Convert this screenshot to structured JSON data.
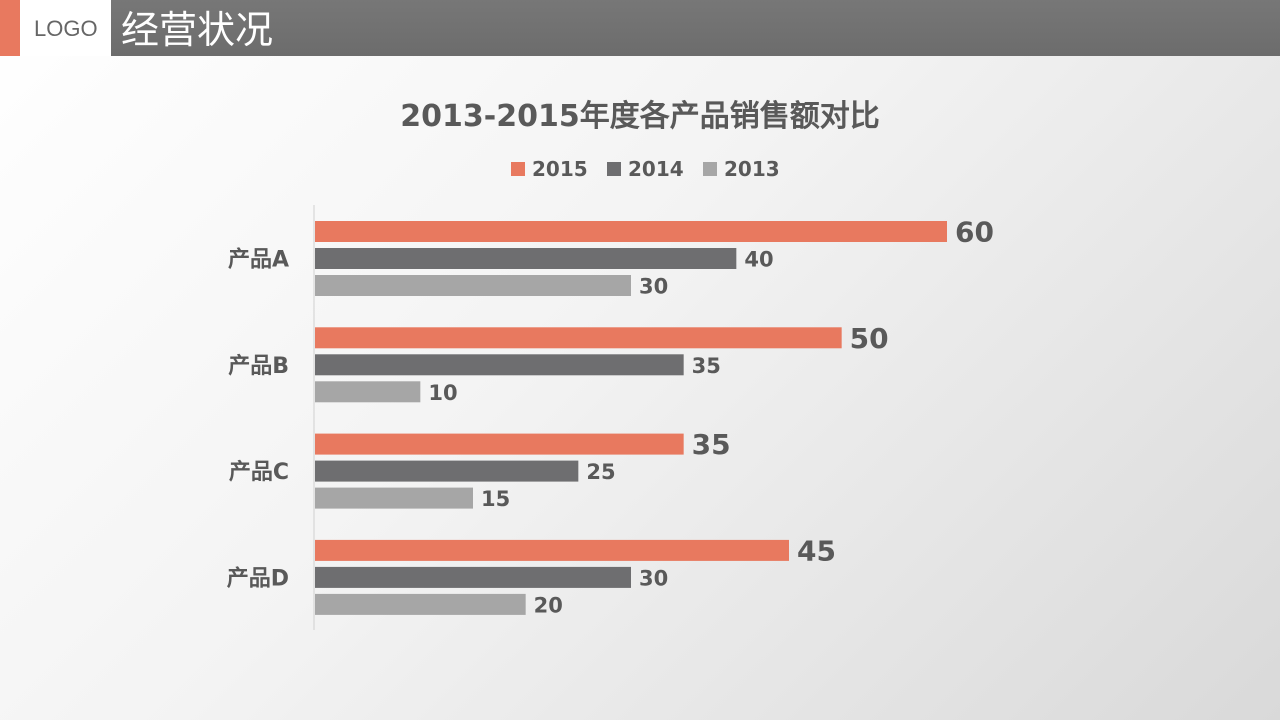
{
  "header": {
    "logo": "LOGO",
    "title": "经营状况"
  },
  "colors": {
    "accent": "#E8795F",
    "header_gray": "#717171",
    "series_2015": "#E8795F",
    "series_2014": "#6E6E70",
    "series_2013": "#A6A6A6"
  },
  "chart_data": {
    "type": "bar",
    "orientation": "horizontal",
    "title": "2013-2015年度各产品销售额对比",
    "legend_position": "top",
    "categories": [
      "产品A",
      "产品B",
      "产品C",
      "产品D"
    ],
    "series": [
      {
        "name": "2015",
        "color": "#E8795F",
        "values": [
          60,
          50,
          35,
          45
        ]
      },
      {
        "name": "2014",
        "color": "#6E6E70",
        "values": [
          40,
          35,
          25,
          30
        ]
      },
      {
        "name": "2013",
        "color": "#A6A6A6",
        "values": [
          30,
          10,
          15,
          20
        ]
      }
    ],
    "xlim": [
      0,
      60
    ],
    "grid": false
  }
}
